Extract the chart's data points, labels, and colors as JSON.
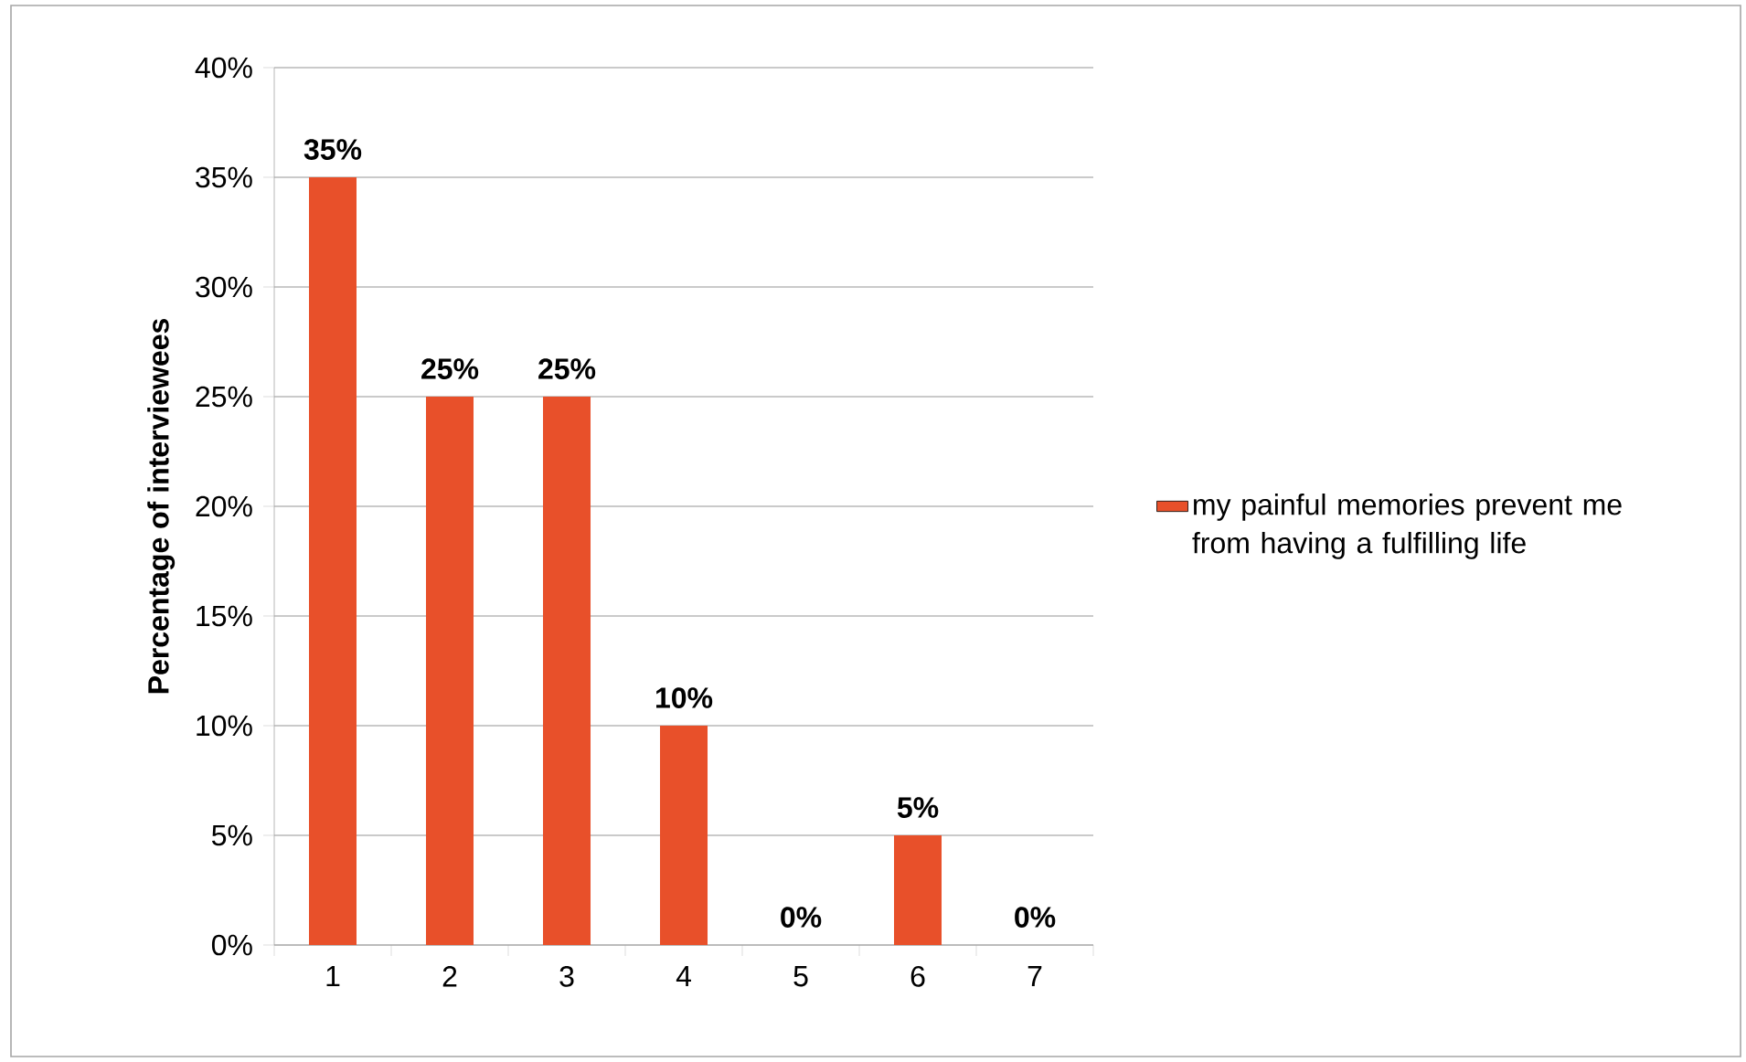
{
  "chart_data": {
    "type": "bar",
    "ylabel": "Percentage of interviewees",
    "categories": [
      "1",
      "2",
      "3",
      "4",
      "5",
      "6",
      "7"
    ],
    "series": [
      {
        "name": "my painful memories prevent me from having a fulfilling life",
        "color": "#e8502a",
        "values": [
          35,
          25,
          25,
          10,
          0,
          5,
          0
        ],
        "value_labels": [
          "35%",
          "25%",
          "25%",
          "10%",
          "0%",
          "5%",
          "0%"
        ]
      }
    ],
    "ylim": [
      0,
      40
    ],
    "yticks": [
      {
        "value": 0,
        "label": "0%"
      },
      {
        "value": 5,
        "label": "5%"
      },
      {
        "value": 10,
        "label": "10%"
      },
      {
        "value": 15,
        "label": "15%"
      },
      {
        "value": 20,
        "label": "20%"
      },
      {
        "value": 25,
        "label": "25%"
      },
      {
        "value": 30,
        "label": "30%"
      },
      {
        "value": 35,
        "label": "35%"
      },
      {
        "value": 40,
        "label": "40%"
      }
    ],
    "grid": "y",
    "legend": "right"
  }
}
